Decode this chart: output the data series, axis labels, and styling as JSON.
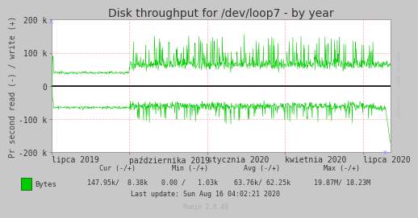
{
  "title": "Disk throughput for /dev/loop7 - by year",
  "ylabel": "Pr second read (-) / write (+)",
  "background_color": "#c8c8c8",
  "plot_bg_color": "#ffffff",
  "grid_color_h": "#ff8888",
  "grid_color_v": "#ff8888",
  "line_color": "#00cc00",
  "zero_line_color": "#000000",
  "ylim": [
    -200000,
    200000
  ],
  "yticks": [
    -200000,
    -100000,
    0,
    100000,
    200000
  ],
  "ytick_labels": [
    "-200 k",
    "-100 k",
    "0",
    "100 k",
    "200 k"
  ],
  "xtick_labels": [
    "lipca 2019",
    "października 2019",
    "stycznia 2020",
    "kwietnia 2020",
    "lipca 2020"
  ],
  "xtick_pos": [
    0.0,
    0.23,
    0.46,
    0.69,
    0.92
  ],
  "title_fontsize": 10,
  "axis_label_fontsize": 7,
  "tick_fontsize": 7,
  "legend_text": "Bytes",
  "legend_color": "#00cc00",
  "last_update": "Last update: Sun Aug 16 04:02:21 2020",
  "munin_version": "Munin 2.0.49",
  "rrdtool_label": "RRDTOOL / TOBI OETIKER",
  "arrow_color": "#9999ff",
  "header_cur": "Cur (-/+)",
  "header_min": "Min (-/+)",
  "header_avg": "Avg (-/+)",
  "header_max": "Max (-/+)",
  "val_cur": "147.95k/  8.38k",
  "val_min": "0.00 /   1.03k",
  "val_avg": "63.76k/ 62.25k",
  "val_max": "19.87M/ 18.23M"
}
